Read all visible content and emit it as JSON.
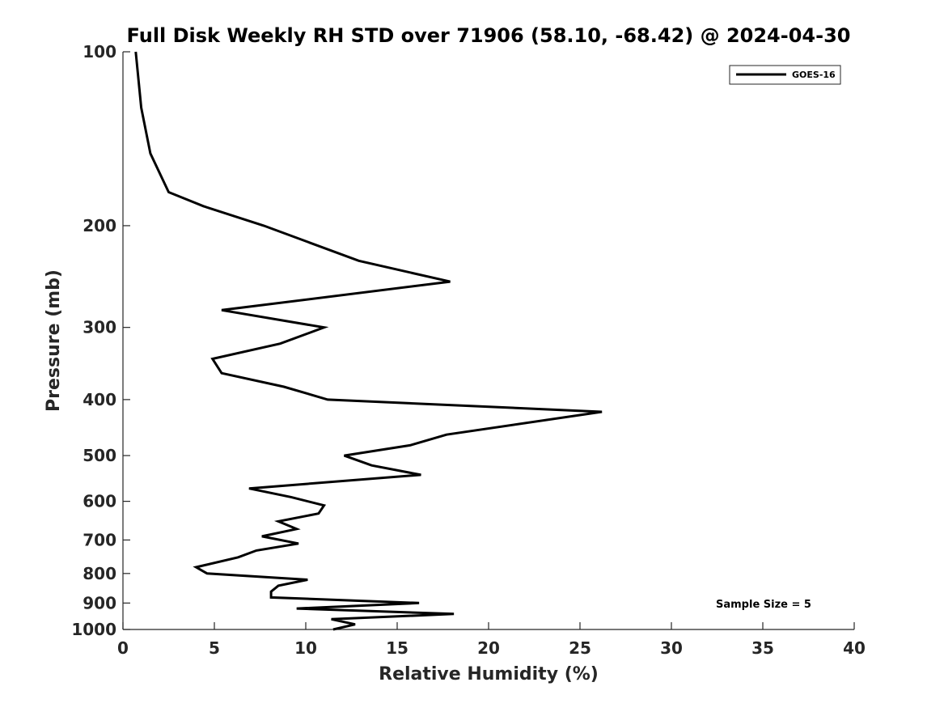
{
  "chart_data": {
    "type": "line",
    "title": "Full Disk Weekly RH STD over 71906 (58.10, -68.42) @ 2024-04-30",
    "xlabel": "Relative Humidity (%)",
    "ylabel": "Pressure (mb)",
    "xlim": [
      0,
      40
    ],
    "ylim": [
      100,
      1000
    ],
    "y_scale": "log",
    "y_reversed": true,
    "x_ticks": [
      0,
      5,
      10,
      15,
      20,
      25,
      30,
      35,
      40
    ],
    "y_ticks": [
      100,
      200,
      300,
      400,
      500,
      600,
      700,
      800,
      900,
      1000
    ],
    "grid": false,
    "legend": "top-right",
    "annotation": "Sample Size = 5",
    "series": [
      {
        "name": "GOES-16",
        "color": "#000000",
        "points": [
          [
            0.7,
            100
          ],
          [
            1.0,
            125
          ],
          [
            1.5,
            150
          ],
          [
            2.5,
            175
          ],
          [
            4.4,
            185
          ],
          [
            7.7,
            200
          ],
          [
            12.9,
            230
          ],
          [
            17.9,
            250
          ],
          [
            5.4,
            280
          ],
          [
            11.0,
            300
          ],
          [
            8.6,
            320
          ],
          [
            4.9,
            340
          ],
          [
            5.4,
            360
          ],
          [
            8.8,
            380
          ],
          [
            11.2,
            400
          ],
          [
            26.2,
            420
          ],
          [
            17.7,
            460
          ],
          [
            15.7,
            480
          ],
          [
            12.1,
            500
          ],
          [
            13.6,
            520
          ],
          [
            16.3,
            540
          ],
          [
            6.9,
            570
          ],
          [
            9.2,
            590
          ],
          [
            11.0,
            610
          ],
          [
            10.7,
            630
          ],
          [
            8.5,
            650
          ],
          [
            9.5,
            670
          ],
          [
            7.6,
            690
          ],
          [
            9.6,
            710
          ],
          [
            7.3,
            730
          ],
          [
            6.3,
            750
          ],
          [
            4.0,
            780
          ],
          [
            4.6,
            800
          ],
          [
            10.1,
            820
          ],
          [
            8.5,
            840
          ],
          [
            8.1,
            860
          ],
          [
            8.1,
            880
          ],
          [
            16.2,
            900
          ],
          [
            9.5,
            920
          ],
          [
            18.1,
            940
          ],
          [
            11.4,
            960
          ],
          [
            12.7,
            980
          ],
          [
            11.5,
            1000
          ]
        ]
      }
    ]
  }
}
